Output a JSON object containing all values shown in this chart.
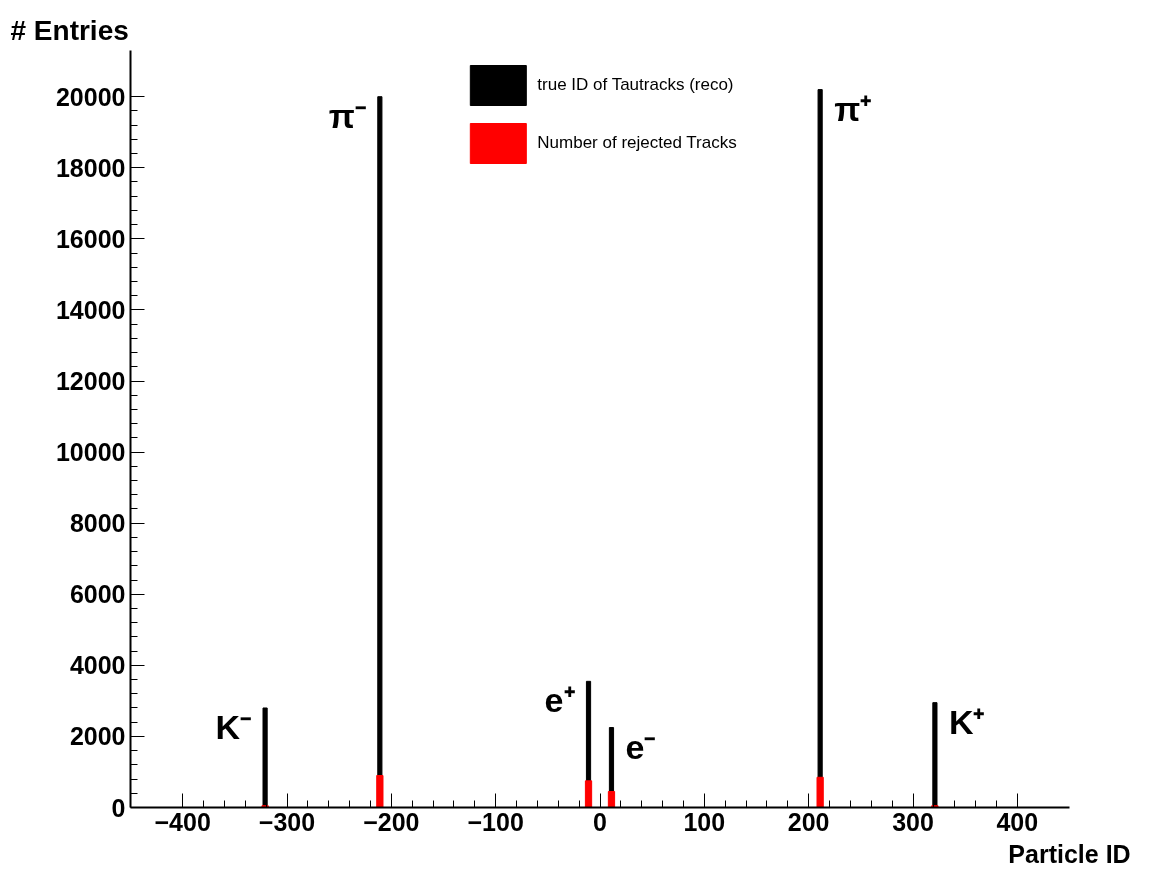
{
  "chart_data": {
    "type": "bar",
    "title": "# Entries",
    "xlabel": "Particle ID",
    "x": [
      -321,
      -211,
      -11,
      11,
      211,
      321
    ],
    "series": [
      {
        "name": "true ID of Tautracks (reco)",
        "color": "#000000",
        "values": [
          2800,
          20000,
          3550,
          2250,
          20200,
          2950
        ]
      },
      {
        "name": "Number of rejected Tracks",
        "color": "#ff0000",
        "values": [
          50,
          900,
          750,
          450,
          850,
          50
        ]
      }
    ],
    "xlim": [
      -450,
      450
    ],
    "ylim": [
      0,
      21300
    ],
    "xticks": [
      -400,
      -300,
      -200,
      -100,
      0,
      100,
      200,
      300,
      400
    ],
    "yticks": [
      0,
      2000,
      4000,
      6000,
      8000,
      10000,
      12000,
      14000,
      16000,
      18000,
      20000
    ],
    "grid": false,
    "legend": "top",
    "annotations": [
      {
        "text": "K⁻",
        "x": -321,
        "y": 2800
      },
      {
        "text": "π⁻",
        "x": -211,
        "y": 20000
      },
      {
        "text": "e⁺",
        "x": -11,
        "y": 3550
      },
      {
        "text": "e⁻",
        "x": 11,
        "y": 2250
      },
      {
        "text": "π⁺",
        "x": 211,
        "y": 20200
      },
      {
        "text": "K⁺",
        "x": 321,
        "y": 2950
      }
    ]
  }
}
